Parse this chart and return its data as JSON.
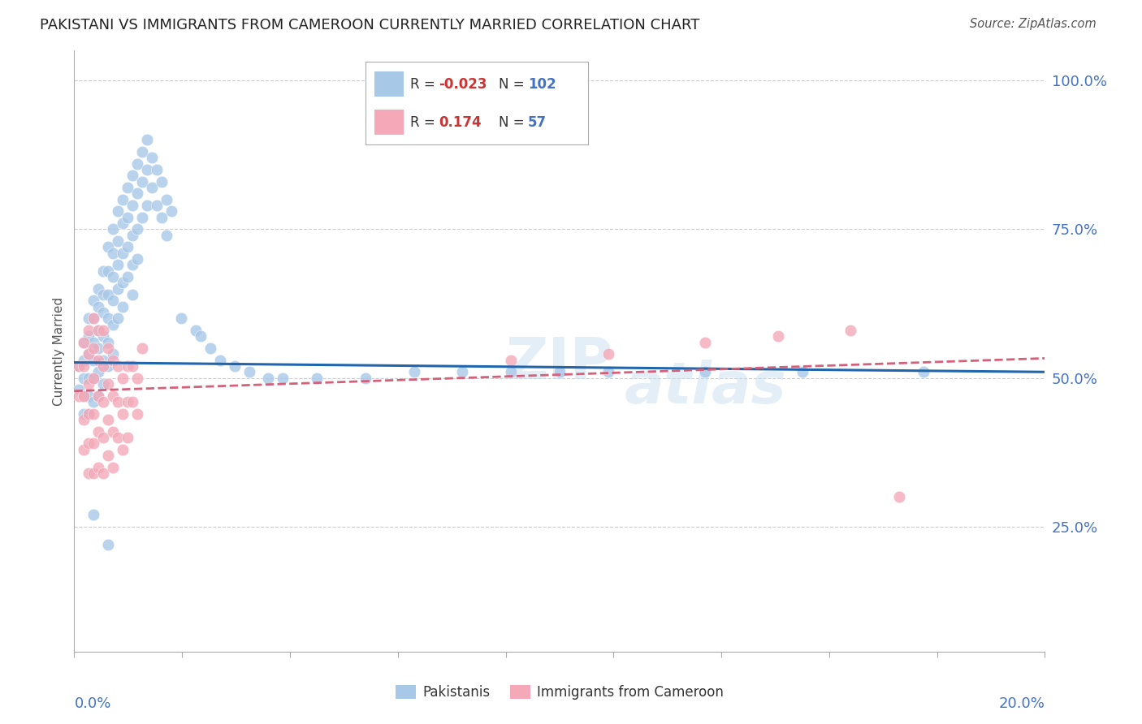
{
  "title": "PAKISTANI VS IMMIGRANTS FROM CAMEROON CURRENTLY MARRIED CORRELATION CHART",
  "source": "Source: ZipAtlas.com",
  "ylabel": "Currently Married",
  "xlim": [
    0.0,
    0.2
  ],
  "ylim": [
    0.04,
    1.05
  ],
  "blue_color": "#a8c8e8",
  "pink_color": "#f4a8b8",
  "trend_blue_color": "#2166ac",
  "trend_pink_color": "#d4607a",
  "background_color": "#ffffff",
  "grid_color": "#cccccc",
  "axis_label_color": "#4472c4",
  "title_color": "#222222",
  "R_blue": -0.023,
  "N_blue": 102,
  "R_pink": 0.174,
  "N_pink": 57,
  "trend_blue_y0": 0.526,
  "trend_blue_y1": 0.51,
  "trend_pink_y0": 0.478,
  "trend_pink_y1": 0.533,
  "blue_points_x": [
    0.001,
    0.001,
    0.002,
    0.002,
    0.002,
    0.002,
    0.002,
    0.003,
    0.003,
    0.003,
    0.003,
    0.003,
    0.003,
    0.004,
    0.004,
    0.004,
    0.004,
    0.004,
    0.004,
    0.005,
    0.005,
    0.005,
    0.005,
    0.005,
    0.005,
    0.006,
    0.006,
    0.006,
    0.006,
    0.006,
    0.006,
    0.007,
    0.007,
    0.007,
    0.007,
    0.007,
    0.007,
    0.008,
    0.008,
    0.008,
    0.008,
    0.008,
    0.008,
    0.009,
    0.009,
    0.009,
    0.009,
    0.009,
    0.01,
    0.01,
    0.01,
    0.01,
    0.01,
    0.011,
    0.011,
    0.011,
    0.011,
    0.012,
    0.012,
    0.012,
    0.012,
    0.012,
    0.013,
    0.013,
    0.013,
    0.013,
    0.014,
    0.014,
    0.014,
    0.015,
    0.015,
    0.015,
    0.016,
    0.016,
    0.017,
    0.017,
    0.018,
    0.018,
    0.019,
    0.019,
    0.02,
    0.022,
    0.025,
    0.026,
    0.028,
    0.03,
    0.033,
    0.036,
    0.04,
    0.043,
    0.05,
    0.06,
    0.07,
    0.08,
    0.09,
    0.1,
    0.11,
    0.13,
    0.15,
    0.175,
    0.004,
    0.007
  ],
  "blue_points_y": [
    0.52,
    0.48,
    0.56,
    0.53,
    0.5,
    0.47,
    0.44,
    0.6,
    0.57,
    0.54,
    0.5,
    0.47,
    0.44,
    0.63,
    0.6,
    0.56,
    0.53,
    0.5,
    0.46,
    0.65,
    0.62,
    0.58,
    0.55,
    0.51,
    0.47,
    0.68,
    0.64,
    0.61,
    0.57,
    0.53,
    0.49,
    0.72,
    0.68,
    0.64,
    0.6,
    0.56,
    0.52,
    0.75,
    0.71,
    0.67,
    0.63,
    0.59,
    0.54,
    0.78,
    0.73,
    0.69,
    0.65,
    0.6,
    0.8,
    0.76,
    0.71,
    0.66,
    0.62,
    0.82,
    0.77,
    0.72,
    0.67,
    0.84,
    0.79,
    0.74,
    0.69,
    0.64,
    0.86,
    0.81,
    0.75,
    0.7,
    0.88,
    0.83,
    0.77,
    0.9,
    0.85,
    0.79,
    0.87,
    0.82,
    0.85,
    0.79,
    0.83,
    0.77,
    0.8,
    0.74,
    0.78,
    0.6,
    0.58,
    0.57,
    0.55,
    0.53,
    0.52,
    0.51,
    0.5,
    0.5,
    0.5,
    0.5,
    0.51,
    0.51,
    0.51,
    0.51,
    0.51,
    0.51,
    0.51,
    0.51,
    0.27,
    0.22
  ],
  "pink_points_x": [
    0.001,
    0.001,
    0.002,
    0.002,
    0.002,
    0.002,
    0.002,
    0.003,
    0.003,
    0.003,
    0.003,
    0.003,
    0.003,
    0.004,
    0.004,
    0.004,
    0.004,
    0.004,
    0.004,
    0.005,
    0.005,
    0.005,
    0.005,
    0.005,
    0.006,
    0.006,
    0.006,
    0.006,
    0.006,
    0.007,
    0.007,
    0.007,
    0.007,
    0.008,
    0.008,
    0.008,
    0.008,
    0.009,
    0.009,
    0.009,
    0.01,
    0.01,
    0.01,
    0.011,
    0.011,
    0.011,
    0.012,
    0.012,
    0.013,
    0.013,
    0.014,
    0.09,
    0.11,
    0.13,
    0.145,
    0.16,
    0.17
  ],
  "pink_points_y": [
    0.52,
    0.47,
    0.56,
    0.52,
    0.47,
    0.43,
    0.38,
    0.58,
    0.54,
    0.49,
    0.44,
    0.39,
    0.34,
    0.6,
    0.55,
    0.5,
    0.44,
    0.39,
    0.34,
    0.58,
    0.53,
    0.47,
    0.41,
    0.35,
    0.58,
    0.52,
    0.46,
    0.4,
    0.34,
    0.55,
    0.49,
    0.43,
    0.37,
    0.53,
    0.47,
    0.41,
    0.35,
    0.52,
    0.46,
    0.4,
    0.5,
    0.44,
    0.38,
    0.52,
    0.46,
    0.4,
    0.52,
    0.46,
    0.5,
    0.44,
    0.55,
    0.53,
    0.54,
    0.56,
    0.57,
    0.58,
    0.3
  ]
}
